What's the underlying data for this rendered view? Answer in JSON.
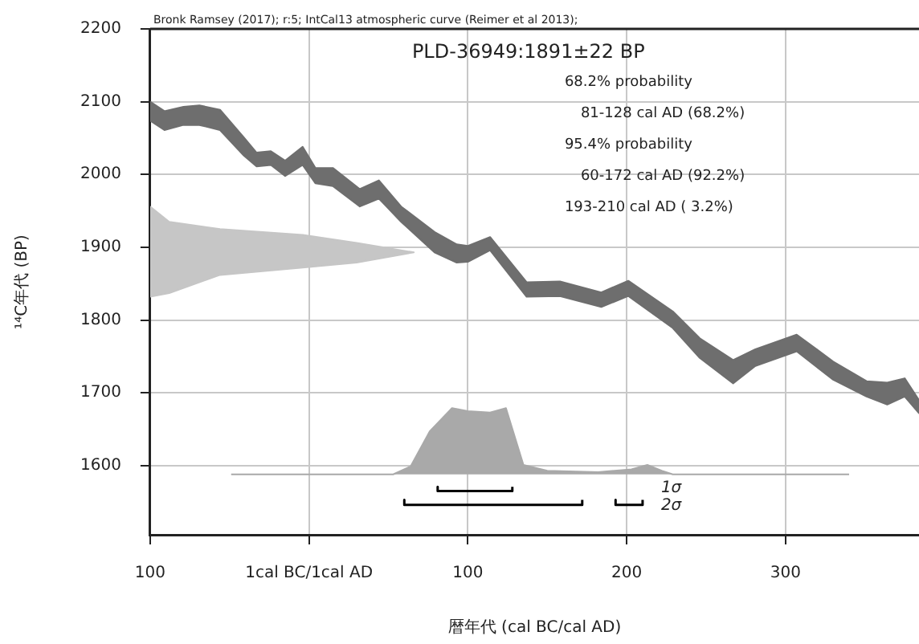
{
  "chart_data": {
    "type": "line",
    "xlabel": "暦年代 (cal BC/cal AD)",
    "ylabel": "¹⁴C年代 (BP)",
    "xlim": [
      -100,
      384
    ],
    "ylim": [
      1505,
      2200
    ],
    "xticks": [
      {
        "value": -100,
        "label": "100"
      },
      {
        "value": 0,
        "label": "1cal BC/1cal AD"
      },
      100,
      200,
      300
    ],
    "yticks": [
      1600,
      1700,
      1800,
      1900,
      2000,
      2100,
      2200
    ],
    "grid": true,
    "legend": false,
    "marker": "none",
    "line_style": "solid",
    "series": [
      {
        "type": "area",
        "color": "#6e6e6e",
        "x": [
          -100,
          -91,
          -79,
          -69,
          -56,
          -41,
          -33,
          -24,
          -15,
          -4,
          4,
          15,
          32,
          44,
          58,
          79,
          93,
          100,
          114,
          137,
          158,
          184,
          201,
          229,
          246,
          267,
          281,
          307,
          330,
          351,
          364,
          375,
          384,
          384,
          375,
          364,
          351,
          330,
          307,
          281,
          267,
          246,
          229,
          201,
          184,
          158,
          137,
          114,
          100,
          93,
          79,
          58,
          44,
          32,
          15,
          4,
          -4,
          -15,
          -24,
          -33,
          -41,
          -56,
          -69,
          -79,
          -91,
          -100
        ],
        "values": [
          2100,
          2087,
          2093,
          2095,
          2089,
          2051,
          2030,
          2032,
          2019,
          2038,
          2009,
          2009,
          1980,
          1992,
          1956,
          1921,
          1904,
          1902,
          1914,
          1852,
          1853,
          1838,
          1854,
          1812,
          1775,
          1745,
          1760,
          1780,
          1743,
          1716,
          1714,
          1720,
          1690,
          1672,
          1695,
          1684,
          1695,
          1718,
          1757,
          1737,
          1713,
          1748,
          1789,
          1833,
          1818,
          1833,
          1832,
          1896,
          1880,
          1879,
          1893,
          1935,
          1967,
          1956,
          1984,
          1988,
          2013,
          1998,
          2013,
          2011,
          2026,
          2061,
          2068,
          2068,
          2061,
          2074
        ]
      },
      {
        "type": "area",
        "color": "#c6c6c6",
        "x": [
          -100,
          -88,
          -56,
          -4,
          30,
          66,
          30,
          -4,
          -56,
          -88,
          -100
        ],
        "values": [
          1956,
          1935,
          1925,
          1917,
          1906,
          1893,
          1879,
          1872,
          1862,
          1837,
          1832
        ]
      },
      {
        "type": "area",
        "color": "#a9a9a9",
        "x": [
          -49,
          53,
          64,
          76,
          90,
          100,
          114,
          124,
          135,
          150,
          182,
          203,
          213,
          222,
          229,
          340
        ],
        "values": [
          1588,
          1588,
          1599,
          1647,
          1679,
          1675,
          1673,
          1679,
          1601,
          1593,
          1591,
          1595,
          1601,
          1593,
          1588,
          1588
        ]
      },
      {
        "color": "#000000",
        "x": [
          81,
          81,
          128,
          128
        ],
        "values": [
          1571,
          1565,
          1565,
          1571
        ]
      },
      {
        "color": "#000000",
        "x": [
          60,
          60,
          172,
          172
        ],
        "values": [
          1553,
          1546,
          1546,
          1553
        ]
      },
      {
        "color": "#000000",
        "x": [
          193,
          193,
          210,
          210
        ],
        "values": [
          1553,
          1546,
          1546,
          1553
        ]
      }
    ],
    "annotations": [
      "Bronk Ramsey (2017); r:5; IntCal13 atmospheric curve (Reimer et al 2013);",
      "PLD-36949:1891±22 BP",
      "68.2% probability",
      "81-128 cal AD (68.2%)",
      "95.4% probability",
      "60-172 cal AD (92.2%)",
      "193-210 cal AD ( 3.2%)",
      "1σ",
      "2σ"
    ]
  }
}
